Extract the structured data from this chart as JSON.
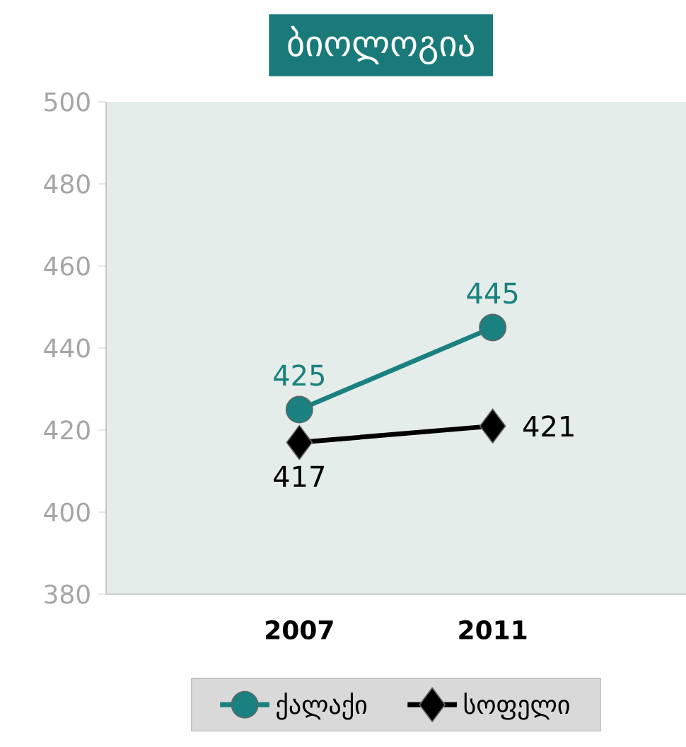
{
  "chart_data": {
    "type": "line",
    "title": "ბიოლოგია",
    "categories": [
      "2007",
      "2011"
    ],
    "series": [
      {
        "name": "ქალაქი",
        "color": "#1a8080",
        "values": [
          425,
          445
        ],
        "marker": "circle"
      },
      {
        "name": "სოფელი",
        "color": "#000000",
        "values": [
          417,
          421
        ],
        "marker": "diamond"
      }
    ],
    "ylim": [
      380,
      500
    ],
    "yticks": [
      380,
      400,
      420,
      440,
      460,
      480,
      500
    ],
    "data_labels": true,
    "legend": "bottom",
    "grid": false
  }
}
